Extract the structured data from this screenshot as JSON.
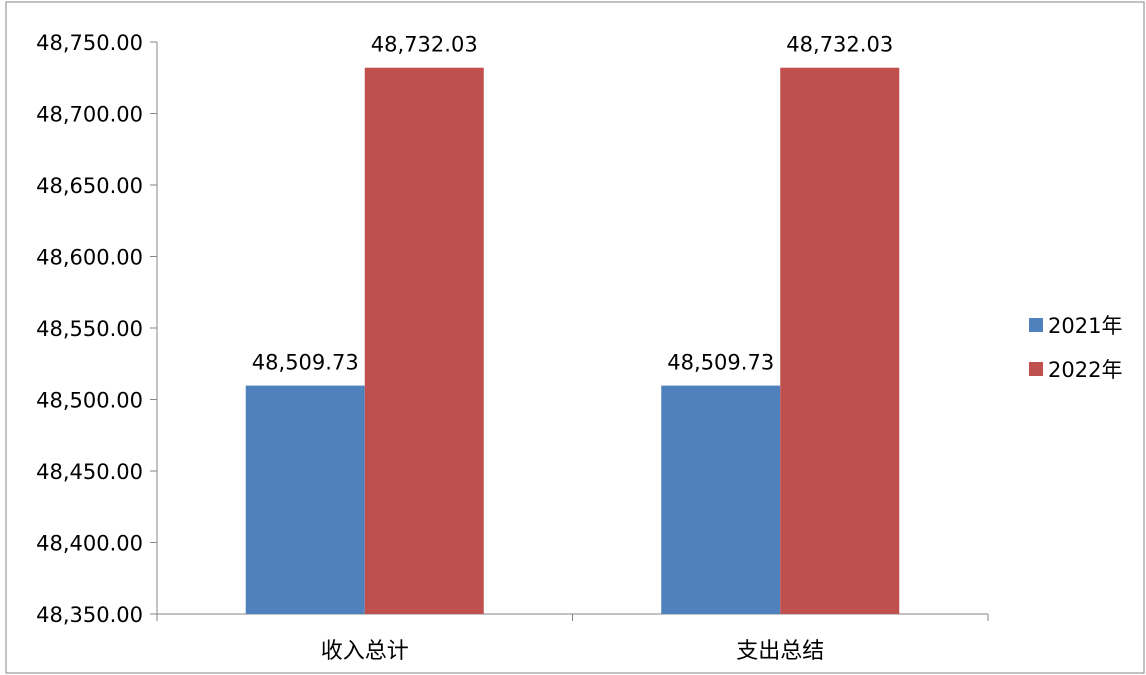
{
  "chart_data": {
    "type": "bar",
    "title": "",
    "xlabel": "",
    "ylabel": "",
    "categories": [
      "收入总计",
      "支出总结"
    ],
    "series": [
      {
        "name": "2021年",
        "color": "#4F81BD",
        "values": [
          48509.73,
          48509.73
        ]
      },
      {
        "name": "2022年",
        "color": "#C0504D",
        "values": [
          48732.03,
          48732.03
        ]
      }
    ],
    "ylim": [
      48350,
      48750
    ],
    "yticks": [
      48350,
      48400,
      48450,
      48500,
      48550,
      48600,
      48650,
      48700,
      48750
    ],
    "ytick_labels": [
      "48,350.00",
      "48,400.00",
      "48,450.00",
      "48,500.00",
      "48,550.00",
      "48,600.00",
      "48,650.00",
      "48,700.00",
      "48,750.00"
    ],
    "data_labels": [
      [
        "48,509.73",
        "48,509.73"
      ],
      [
        "48,732.03",
        "48,732.03"
      ]
    ],
    "grid": false,
    "legend_position": "right"
  }
}
